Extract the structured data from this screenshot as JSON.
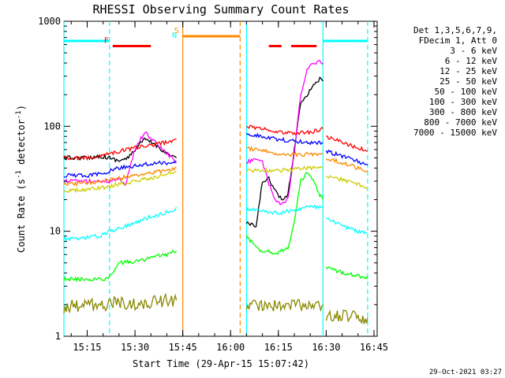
{
  "chart_data": {
    "type": "line",
    "title": "RHESSI Observing Summary Count Rates",
    "xlabel": "Start Time (29-Apr-15 15:07:42)",
    "ylabel": "Count Rate (s",
    "ylabel_sup1": "-1",
    "ylabel_mid": " detector",
    "ylabel_sup2": "-1",
    "ylabel_end": ")",
    "yscale": "log",
    "xlim": [
      "15:07:42",
      "16:46:00"
    ],
    "ylim": [
      1,
      1000
    ],
    "x_ticks": [
      "15:15",
      "15:30",
      "15:45",
      "16:00",
      "16:15",
      "16:30",
      "16:45"
    ],
    "y_ticks": [
      1,
      10,
      100,
      1000
    ],
    "y_tick_labels": [
      "1",
      "10",
      "100",
      "1000"
    ],
    "legend_position": "top-right",
    "legend_header": [
      "Det 1,3,5,6,7,9,",
      "FDecim 1, Att 0"
    ],
    "timestamp": "29-Oct-2021 03:27",
    "series": [
      {
        "name": "3 - 6 keV",
        "color": "#000000",
        "segments": [
          {
            "x": [
              "15:07:42",
              "15:15",
              "15:19",
              "15:22",
              "15:25",
              "15:28",
              "15:30",
              "15:33",
              "15:36",
              "15:40",
              "15:43"
            ],
            "y": [
              50,
              50,
              52,
              50,
              47,
              50,
              60,
              75,
              68,
              55,
              50
            ]
          },
          {
            "x": [
              "16:05",
              "16:08",
              "16:10",
              "16:12",
              "16:14",
              "16:16",
              "16:18",
              "16:20",
              "16:22",
              "16:24",
              "16:26",
              "16:28",
              "16:29"
            ],
            "y": [
              12,
              11,
              30,
              32,
              24,
              20,
              22,
              60,
              170,
              200,
              250,
              280,
              270
            ]
          }
        ]
      },
      {
        "name": "6 - 12 keV",
        "color": "#ff00ff",
        "segments": [
          {
            "x": [
              "15:07:42",
              "15:15",
              "15:20",
              "15:22",
              "15:25",
              "15:27",
              "15:30",
              "15:33",
              "15:36",
              "15:40",
              "15:43"
            ],
            "y": [
              30,
              30,
              30,
              30,
              32,
              28,
              60,
              88,
              72,
              55,
              45
            ]
          },
          {
            "x": [
              "16:05",
              "16:08",
              "16:10",
              "16:12",
              "16:14",
              "16:16",
              "16:18",
              "16:20",
              "16:22",
              "16:24",
              "16:26",
              "16:28",
              "16:29"
            ],
            "y": [
              45,
              50,
              45,
              28,
              20,
              18,
              20,
              55,
              200,
              340,
              400,
              420,
              400
            ]
          }
        ]
      },
      {
        "name": "12 - 25 keV",
        "color": "#00ff00",
        "segments": [
          {
            "x": [
              "15:07:42",
              "15:15",
              "15:20",
              "15:22",
              "15:25",
              "15:28",
              "15:31",
              "15:34",
              "15:37",
              "15:40",
              "15:43"
            ],
            "y": [
              3.5,
              3.5,
              3.5,
              3.6,
              5,
              5.1,
              5.2,
              5.5,
              5.8,
              6,
              6.5
            ]
          },
          {
            "x": [
              "16:05",
              "16:08",
              "16:10",
              "16:12",
              "16:14",
              "16:16",
              "16:18",
              "16:20",
              "16:22",
              "16:24",
              "16:26",
              "16:28",
              "16:29"
            ],
            "y": [
              9,
              7,
              6.5,
              6.5,
              6.2,
              6.5,
              7,
              12,
              30,
              36,
              30,
              22,
              20
            ]
          },
          {
            "x": [
              "16:30",
              "16:33",
              "16:36",
              "16:40",
              "16:43"
            ],
            "y": [
              4.5,
              4.2,
              4,
              3.8,
              3.5
            ]
          }
        ]
      },
      {
        "name": "25 - 50 keV",
        "color": "#00ffff",
        "segments": [
          {
            "x": [
              "15:07:42",
              "15:12",
              "15:15",
              "15:19",
              "15:22",
              "15:26",
              "15:30",
              "15:34",
              "15:38",
              "15:42",
              "15:43"
            ],
            "y": [
              8.5,
              8.5,
              8.8,
              9,
              10,
              11,
              12,
              13.5,
              14.5,
              16,
              17
            ]
          },
          {
            "x": [
              "16:05",
              "16:08",
              "16:10",
              "16:12",
              "16:14",
              "16:16",
              "16:18",
              "16:20",
              "16:22",
              "16:24",
              "16:26",
              "16:28",
              "16:29"
            ],
            "y": [
              16,
              16,
              15.5,
              15.5,
              15,
              15,
              15.5,
              16,
              16.5,
              17,
              17,
              17,
              17
            ]
          },
          {
            "x": [
              "16:30",
              "16:33",
              "16:36",
              "16:40",
              "16:43"
            ],
            "y": [
              13,
              12,
              11,
              10,
              9.5
            ]
          }
        ]
      },
      {
        "name": "50 - 100 keV",
        "color": "#cccc00",
        "segments": [
          {
            "x": [
              "15:07:42",
              "15:15",
              "15:20",
              "15:25",
              "15:30",
              "15:35",
              "15:40",
              "15:43"
            ],
            "y": [
              24,
              25,
              26,
              28,
              30,
              32,
              35,
              37
            ]
          },
          {
            "x": [
              "16:05",
              "16:10",
              "16:15",
              "16:20",
              "16:25",
              "16:29"
            ],
            "y": [
              38,
              38,
              38,
              39,
              40,
              40
            ]
          },
          {
            "x": [
              "16:30",
              "16:35",
              "16:40",
              "16:43"
            ],
            "y": [
              34,
              31,
              28,
              26
            ]
          }
        ]
      },
      {
        "name": "100 - 300 keV",
        "color": "#ff8800",
        "segments": [
          {
            "x": [
              "15:07:42",
              "15:15",
              "15:20",
              "15:25",
              "15:30",
              "15:35",
              "15:40",
              "15:43"
            ],
            "y": [
              28,
              29,
              30,
              32,
              34,
              36,
              38,
              40
            ]
          },
          {
            "x": [
              "16:05",
              "16:10",
              "16:15",
              "16:20",
              "16:25",
              "16:29"
            ],
            "y": [
              62,
              58,
              55,
              54,
              54,
              55
            ]
          },
          {
            "x": [
              "16:30",
              "16:35",
              "16:40",
              "16:43"
            ],
            "y": [
              50,
              45,
              40,
              38
            ]
          }
        ]
      },
      {
        "name": "300 - 800 keV",
        "color": "#0000ff",
        "segments": [
          {
            "x": [
              "15:07:42",
              "15:15",
              "15:20",
              "15:22",
              "15:25",
              "15:30",
              "15:35",
              "15:40",
              "15:43"
            ],
            "y": [
              34,
              34,
              35,
              38,
              40,
              42,
              44,
              45,
              46
            ]
          },
          {
            "x": [
              "16:05",
              "16:10",
              "16:15",
              "16:20",
              "16:25",
              "16:29"
            ],
            "y": [
              85,
              80,
              75,
              72,
              70,
              70
            ]
          },
          {
            "x": [
              "16:30",
              "16:35",
              "16:40",
              "16:43"
            ],
            "y": [
              58,
              52,
              46,
              43
            ]
          }
        ]
      },
      {
        "name": "800 - 7000 keV",
        "color": "#ff0000",
        "segments": [
          {
            "x": [
              "15:07:42",
              "15:15",
              "15:20",
              "15:22",
              "15:25",
              "15:30",
              "15:35",
              "15:40",
              "15:43"
            ],
            "y": [
              50,
              50,
              52,
              55,
              58,
              62,
              66,
              70,
              75
            ]
          },
          {
            "x": [
              "16:05",
              "16:10",
              "16:15",
              "16:20",
              "16:25",
              "16:29"
            ],
            "y": [
              100,
              95,
              88,
              85,
              88,
              95
            ]
          },
          {
            "x": [
              "16:30",
              "16:35",
              "16:40",
              "16:43"
            ],
            "y": [
              80,
              70,
              62,
              58
            ]
          }
        ]
      },
      {
        "name": "7000 - 15000 keV",
        "color": "#888800",
        "segments": [
          {
            "x": [
              "15:07:42",
              "15:15",
              "15:20",
              "15:25",
              "15:30",
              "15:35",
              "15:40",
              "15:43"
            ],
            "y": [
              1.9,
              2,
              2,
              2.1,
              2,
              2.1,
              2.2,
              2.2
            ]
          },
          {
            "x": [
              "16:05",
              "16:10",
              "16:15",
              "16:20",
              "16:25",
              "16:29"
            ],
            "y": [
              2,
              2,
              1.9,
              2,
              2,
              2
            ]
          },
          {
            "x": [
              "16:30",
              "16:35",
              "16:40",
              "16:43"
            ],
            "y": [
              1.5,
              1.6,
              1.5,
              1.5
            ]
          }
        ]
      }
    ],
    "flags": [
      {
        "label": "N",
        "color": "#00ffff",
        "y": 650,
        "segments": [
          [
            "15:07:42",
            "15:22"
          ],
          [
            "16:29",
            "16:43"
          ]
        ]
      },
      {
        "label": "F",
        "color": "#ff0000",
        "y": 580,
        "segments": [
          [
            "15:23",
            "15:35"
          ],
          [
            "16:12",
            "16:16"
          ],
          [
            "16:19",
            "16:27"
          ]
        ]
      },
      {
        "label": "S",
        "color": "#ff8800",
        "y": 720,
        "segments": [
          [
            "15:45",
            "16:03"
          ]
        ]
      }
    ],
    "vertical_lines": [
      {
        "x": "15:07:42",
        "color": "#00ffff",
        "style": "solid"
      },
      {
        "x": "15:22",
        "color": "#00ffff",
        "style": "dashed"
      },
      {
        "x": "15:45",
        "color": "#ff8800",
        "style": "solid"
      },
      {
        "x": "16:03",
        "color": "#ff8800",
        "style": "dashed"
      },
      {
        "x": "16:05",
        "color": "#00ffff",
        "style": "solid"
      },
      {
        "x": "16:29",
        "color": "#00ffff",
        "style": "solid"
      },
      {
        "x": "16:43",
        "color": "#00ffff",
        "style": "dashed"
      }
    ]
  }
}
